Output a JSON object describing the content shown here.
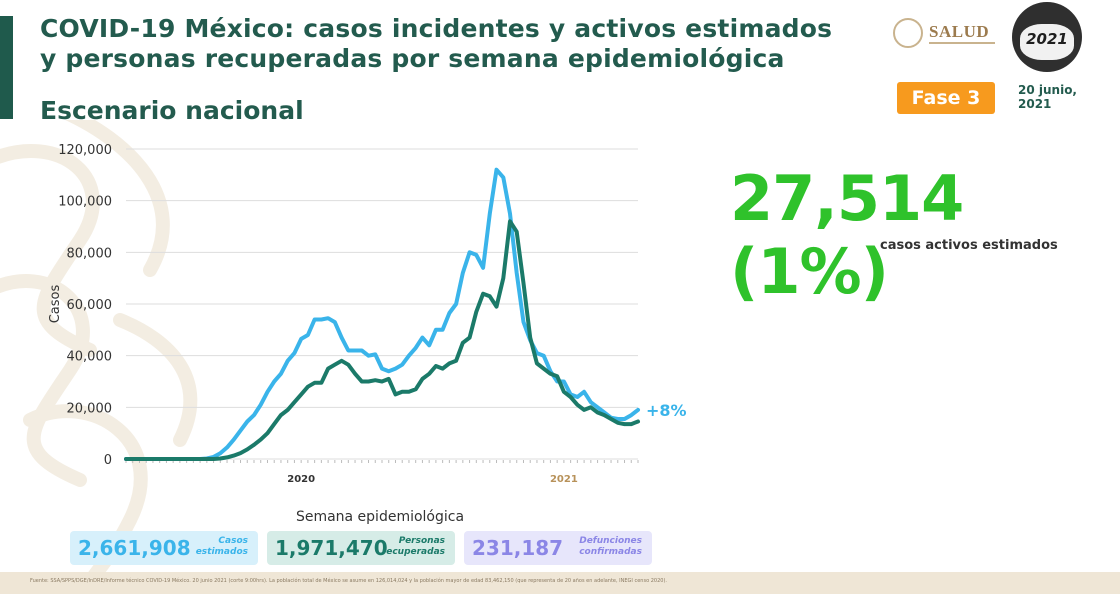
{
  "header": {
    "title": "COVID-19 México: casos incidentes y activos estimados y personas recuperadas por semana epidemiológica",
    "subtitle": "Escenario nacional"
  },
  "branding": {
    "salud": "SALUD",
    "logo_year": "2021",
    "logo_country": "México"
  },
  "badge": {
    "label": "Fase 3",
    "color": "#f79a1e"
  },
  "date": {
    "line1": "20 junio,",
    "line2": "2021"
  },
  "highlight": {
    "value": "27,514 (1%)",
    "caption": "casos activos estimados",
    "color": "#2fc22b"
  },
  "stats": [
    {
      "value": "2,661,908",
      "label1": "Casos",
      "label2": "estimados",
      "bg": "#d7f0fb",
      "color": "#3ab4ea"
    },
    {
      "value": "1,971,470",
      "label1": "Personas",
      "label2": "recuperadas",
      "bg": "#d6ece7",
      "color": "#1b7a69"
    },
    {
      "value": "231,187",
      "label1": "Defunciones",
      "label2": "confirmadas",
      "bg": "#e7e6fb",
      "color": "#8b86e6"
    }
  ],
  "footer": {
    "text": "Fuente: SSA/SPPS/DGE/InDRE/Informe técnico COVID-19 México. 20 junio 2021 (corte 9:00hrs). La población total de México se asume en 126,014,024 y la población mayor de edad 83,462,150 (que representa de 20 años en adelante, INEGI censo 2020)."
  },
  "chart_data": {
    "type": "line",
    "title": "",
    "xlabel": "Semana epidemiológica",
    "ylabel": "Casos",
    "ylim": [
      0,
      120000
    ],
    "yticks": [
      0,
      20000,
      40000,
      60000,
      80000,
      100000,
      120000
    ],
    "ytick_labels": [
      "0",
      "20,000",
      "40,000",
      "60,000",
      "80,000",
      "100,000",
      "120,000"
    ],
    "year_labels": [
      {
        "text": "2020",
        "week": 26,
        "color": "#333333"
      },
      {
        "text": "2021",
        "week": 65,
        "color": "#b8925a"
      }
    ],
    "annotation": {
      "text": "+8%",
      "color": "#3ab4ea"
    },
    "weeks": 77,
    "grid": true,
    "series": [
      {
        "color": "#3ab4ea",
        "values": [
          0,
          0,
          0,
          0,
          0,
          0,
          0,
          0,
          0,
          0,
          0,
          0,
          200,
          800,
          2200,
          4500,
          7500,
          11000,
          14500,
          17000,
          21000,
          26000,
          30000,
          33000,
          38000,
          41000,
          46500,
          48000,
          54000,
          54000,
          54500,
          53000,
          47000,
          42000,
          42000,
          42000,
          40000,
          40500,
          35000,
          34000,
          35000,
          36500,
          40000,
          43000,
          47000,
          44000,
          50000,
          50000,
          56500,
          60000,
          72000,
          80000,
          79000,
          74000,
          95000,
          112000,
          109000,
          95000,
          72000,
          53000,
          46000,
          41000,
          40000,
          34000,
          30000,
          30000,
          25000,
          24000,
          26000,
          22000,
          20000,
          18000,
          16000,
          15500,
          15500,
          17000,
          19000
        ]
      },
      {
        "color": "#1b7a69",
        "values": [
          0,
          0,
          0,
          0,
          0,
          0,
          0,
          0,
          0,
          0,
          0,
          0,
          0,
          0,
          200,
          600,
          1300,
          2300,
          3700,
          5500,
          7500,
          10000,
          13500,
          17000,
          19000,
          22000,
          25000,
          28000,
          29500,
          29500,
          35000,
          36500,
          38000,
          36500,
          33000,
          30000,
          30000,
          30500,
          30000,
          31000,
          25000,
          26000,
          26000,
          27000,
          31000,
          33000,
          36000,
          35000,
          37000,
          38000,
          45000,
          47000,
          57000,
          64000,
          63000,
          59000,
          70000,
          92000,
          88000,
          68000,
          47000,
          37000,
          35000,
          33000,
          32000,
          26000,
          24000,
          21000,
          19000,
          20000,
          18000,
          17000,
          15500,
          14000,
          13500,
          13500,
          14500
        ]
      }
    ]
  }
}
